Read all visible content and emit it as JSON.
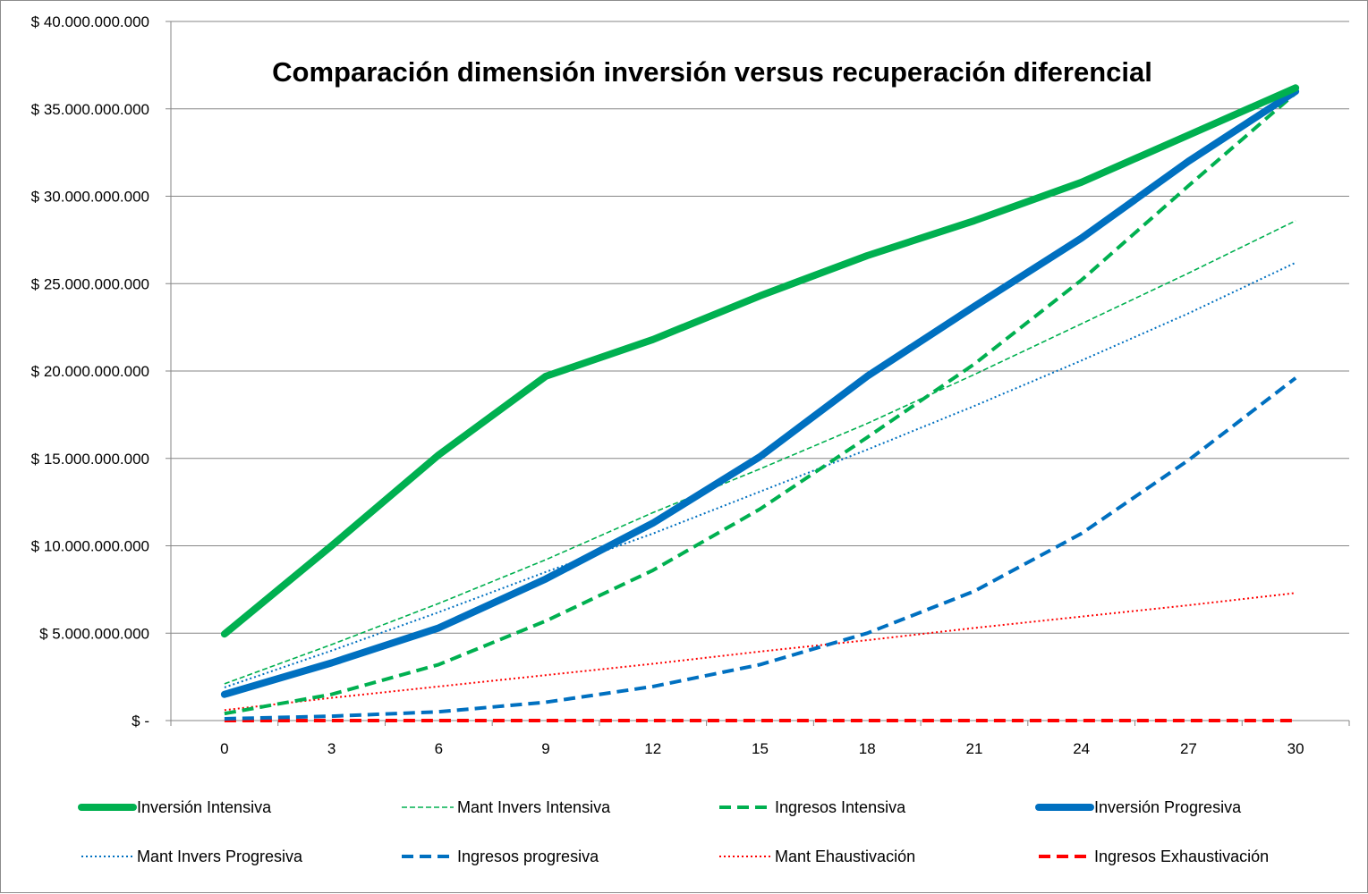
{
  "chart_data": {
    "type": "line",
    "title": "Comparación dimensión inversión versus recuperación diferencial",
    "xlabel": "",
    "ylabel": "",
    "categories": [
      "0",
      "3",
      "6",
      "9",
      "12",
      "15",
      "18",
      "21",
      "24",
      "27",
      "30"
    ],
    "ylim": [
      0,
      40000000000
    ],
    "y_ticks": [
      {
        "value": 0,
        "label": "$ -"
      },
      {
        "value": 5000000000,
        "label": "$ 5.000.000.000"
      },
      {
        "value": 10000000000,
        "label": "$ 10.000.000.000"
      },
      {
        "value": 15000000000,
        "label": "$ 15.000.000.000"
      },
      {
        "value": 20000000000,
        "label": "$ 20.000.000.000"
      },
      {
        "value": 25000000000,
        "label": "$ 25.000.000.000"
      },
      {
        "value": 30000000000,
        "label": "$ 30.000.000.000"
      },
      {
        "value": 35000000000,
        "label": "$ 35.000.000.000"
      },
      {
        "value": 40000000000,
        "label": "$ 40.000.000.000"
      }
    ],
    "grid": "horizontal",
    "legend_position": "bottom",
    "series": [
      {
        "name": "Inversión Intensiva",
        "color": "#00b050",
        "style": "solid-thick",
        "values": [
          4950000000,
          10000000000,
          15200000000,
          19700000000,
          21800000000,
          24300000000,
          26600000000,
          28600000000,
          30800000000,
          33500000000,
          36200000000
        ]
      },
      {
        "name": "Mant Invers Intensiva",
        "color": "#00b050",
        "style": "thin-dashed",
        "values": [
          2100000000,
          4350000000,
          6700000000,
          9200000000,
          11900000000,
          14400000000,
          17000000000,
          19800000000,
          22700000000,
          25600000000,
          28600000000
        ]
      },
      {
        "name": "Ingresos Intensiva",
        "color": "#00b050",
        "style": "dashed",
        "values": [
          400000000,
          1500000000,
          3200000000,
          5700000000,
          8600000000,
          12100000000,
          16200000000,
          20400000000,
          25200000000,
          30600000000,
          35900000000
        ]
      },
      {
        "name": "Inversión Progresiva",
        "color": "#0070c0",
        "style": "solid-thick",
        "values": [
          1500000000,
          3300000000,
          5300000000,
          8100000000,
          11300000000,
          15100000000,
          19700000000,
          23700000000,
          27600000000,
          32000000000,
          36000000000
        ]
      },
      {
        "name": "Mant Invers Progresiva",
        "color": "#0070c0",
        "style": "dotted",
        "values": [
          1900000000,
          4000000000,
          6200000000,
          8500000000,
          10700000000,
          13100000000,
          15500000000,
          18000000000,
          20600000000,
          23300000000,
          26200000000
        ]
      },
      {
        "name": "Ingresos progresiva",
        "color": "#0070c0",
        "style": "dashed",
        "values": [
          100000000,
          250000000,
          500000000,
          1050000000,
          1950000000,
          3200000000,
          5000000000,
          7400000000,
          10700000000,
          14900000000,
          19600000000
        ]
      },
      {
        "name": "Mant Ehaustivación",
        "color": "#ff0000",
        "style": "dotted",
        "values": [
          600000000,
          1300000000,
          1950000000,
          2600000000,
          3250000000,
          3950000000,
          4600000000,
          5300000000,
          5950000000,
          6600000000,
          7300000000
        ]
      },
      {
        "name": "Ingresos Exhaustivación",
        "color": "#ff0000",
        "style": "dashed-thick",
        "values": [
          0,
          0,
          0,
          0,
          0,
          0,
          0,
          0,
          0,
          0,
          0
        ]
      }
    ]
  }
}
